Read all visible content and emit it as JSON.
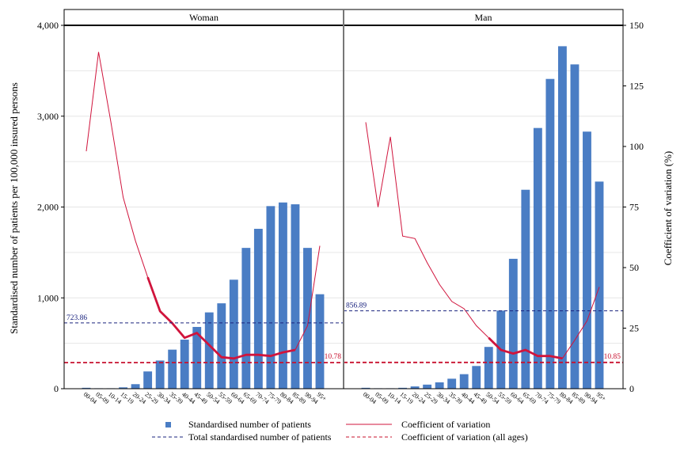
{
  "chart_data": {
    "type": "bar",
    "title": "",
    "ylabel": "Standardised number of patients per 100,000 insured persons",
    "y2label": "Coefficient of variation (%)",
    "ylim": [
      0,
      4000
    ],
    "y2lim": [
      0,
      150
    ],
    "yticks": [
      "0",
      "1,000",
      "2,000",
      "3,000",
      "4,000"
    ],
    "y2ticks": [
      "0",
      "25",
      "50",
      "75",
      "100",
      "125",
      "150"
    ],
    "categories": [
      "00-04",
      "05-09",
      "10-14",
      "15-19",
      "20-24",
      "25-29",
      "30-34",
      "35-39",
      "40-44",
      "45-49",
      "50-54",
      "55-59",
      "60-64",
      "65-69",
      "70-74",
      "75-79",
      "80-84",
      "85-89",
      "90-94",
      "95+"
    ],
    "grid": true,
    "legend_position": "bottom",
    "panels": [
      {
        "name": "Woman",
        "bars": [
          10,
          5,
          5,
          15,
          50,
          190,
          310,
          430,
          540,
          680,
          840,
          940,
          1200,
          1550,
          1760,
          2010,
          2050,
          2030,
          1550,
          1040
        ],
        "cv": [
          98,
          139,
          110,
          79,
          61,
          46,
          32,
          27,
          21,
          23,
          18,
          13,
          12.5,
          14,
          14,
          13.5,
          15,
          16,
          26,
          59
        ],
        "cv_bold_range": [
          5,
          17
        ],
        "total_reference": 723.86,
        "total_label": "723.86",
        "cv_all_ages": 10.78,
        "cv_all_label": "10.78"
      },
      {
        "name": "Man",
        "bars": [
          10,
          5,
          5,
          10,
          25,
          45,
          70,
          110,
          160,
          250,
          460,
          860,
          1430,
          2190,
          2870,
          3410,
          3770,
          3570,
          2830,
          2280
        ],
        "cv": [
          110,
          75,
          104,
          63,
          62,
          52,
          43,
          36,
          33,
          26,
          21,
          16,
          14.5,
          16,
          13.5,
          13.5,
          12.5,
          20,
          28,
          42
        ],
        "cv_bold_range": [
          10,
          16
        ],
        "total_reference": 856.89,
        "total_label": "856.89",
        "cv_all_ages": 10.85,
        "cv_all_label": "10.85"
      }
    ],
    "legend": [
      {
        "type": "bar",
        "label": "Standardised number of patients"
      },
      {
        "type": "line",
        "label": "Coefficient of variation"
      },
      {
        "type": "dash-navy",
        "label": "Total standardised number of patients"
      },
      {
        "type": "dash-red",
        "label": "Coefficient of variation (all ages)"
      }
    ],
    "colors": {
      "bar": "#4a7dc4",
      "cv_line": "#d0143c",
      "total_line": "#1a237e",
      "cv_all_line": "#c8102e",
      "grid": "#e6e6e6",
      "frame": "#000000"
    }
  }
}
